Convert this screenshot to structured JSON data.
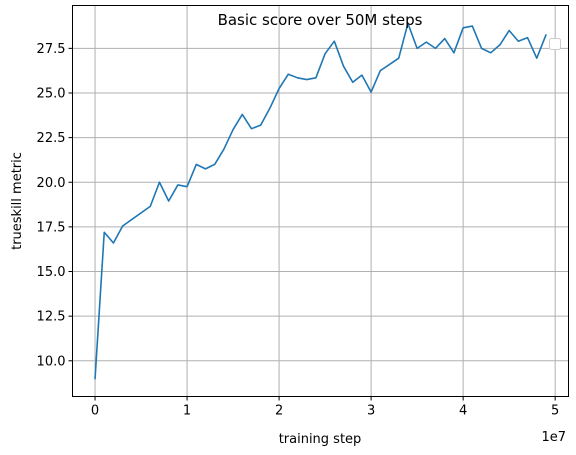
{
  "chart_data": {
    "type": "line",
    "title": "Basic score over 50M steps",
    "xlabel": "training step",
    "ylabel": "trueskill metric",
    "x_offset_text": "1e7",
    "xlim": [
      -2450000,
      51450000
    ],
    "ylim": [
      8.0,
      29.9
    ],
    "grid": true,
    "legend": "top-right (empty)",
    "line_color": "#1f77b4",
    "x_ticks": [
      {
        "value": 0,
        "label": "0"
      },
      {
        "value": 10000000,
        "label": "1"
      },
      {
        "value": 20000000,
        "label": "2"
      },
      {
        "value": 30000000,
        "label": "3"
      },
      {
        "value": 40000000,
        "label": "4"
      },
      {
        "value": 50000000,
        "label": "5"
      }
    ],
    "y_ticks": [
      {
        "value": 10.0,
        "label": "10.0"
      },
      {
        "value": 12.5,
        "label": "12.5"
      },
      {
        "value": 15.0,
        "label": "15.0"
      },
      {
        "value": 17.5,
        "label": "17.5"
      },
      {
        "value": 20.0,
        "label": "20.0"
      },
      {
        "value": 22.5,
        "label": "22.5"
      },
      {
        "value": 25.0,
        "label": "25.0"
      },
      {
        "value": 27.5,
        "label": "27.5"
      }
    ],
    "series": [
      {
        "x": [
          0,
          1000000,
          2000000,
          3000000,
          6000000,
          7000000,
          8000000,
          9000000,
          10000000,
          11000000,
          12000000,
          13000000,
          14000000,
          15000000,
          16000000,
          17000000,
          18000000,
          19000000,
          20000000,
          21000000,
          22000000,
          23000000,
          24000000,
          25000000,
          26000000,
          27000000,
          28000000,
          29000000,
          30000000,
          31000000,
          32000000,
          33000000,
          34000000,
          35000000,
          36000000,
          37000000,
          38000000,
          39000000,
          40000000,
          41000000,
          42000000,
          43000000,
          44000000,
          45000000,
          46000000,
          47000000,
          48000000,
          49000000
        ],
        "values": [
          9.0,
          17.2,
          16.6,
          17.55,
          18.65,
          20.0,
          18.95,
          19.85,
          19.75,
          21.0,
          20.75,
          21.0,
          21.85,
          22.95,
          23.8,
          23.0,
          23.2,
          24.15,
          25.25,
          26.05,
          25.85,
          25.75,
          25.85,
          27.2,
          27.9,
          26.5,
          25.6,
          26.0,
          25.05,
          26.25,
          26.6,
          26.95,
          28.9,
          27.5,
          27.85,
          27.5,
          28.05,
          27.25,
          28.65,
          28.75,
          27.5,
          27.25,
          27.7,
          28.5,
          27.9,
          28.1,
          26.95,
          28.25
        ]
      }
    ]
  }
}
